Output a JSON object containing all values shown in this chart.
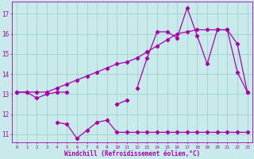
{
  "x": [
    0,
    1,
    2,
    3,
    4,
    5,
    6,
    7,
    8,
    9,
    10,
    11,
    12,
    13,
    14,
    15,
    16,
    17,
    18,
    19,
    20,
    21,
    22,
    23
  ],
  "line_smooth": [
    13.1,
    13.1,
    13.1,
    13.1,
    13.3,
    13.5,
    13.7,
    13.9,
    14.1,
    14.3,
    14.5,
    14.6,
    14.8,
    15.1,
    15.4,
    15.7,
    16.0,
    16.1,
    16.2,
    16.2,
    16.2,
    16.2,
    15.5,
    13.1
  ],
  "line_upper": [
    null,
    null,
    null,
    null,
    null,
    null,
    null,
    null,
    null,
    null,
    null,
    null,
    13.3,
    14.8,
    16.1,
    16.1,
    15.8,
    17.3,
    15.9,
    14.5,
    16.2,
    16.2,
    14.1,
    13.1
  ],
  "line_mid": [
    13.1,
    13.1,
    12.8,
    13.0,
    13.1,
    13.1,
    null,
    null,
    null,
    null,
    12.5,
    12.7,
    null,
    null,
    null,
    null,
    null,
    null,
    null,
    null,
    null,
    null,
    null,
    null
  ],
  "line_lower": [
    null,
    null,
    null,
    null,
    11.6,
    11.5,
    10.8,
    11.2,
    11.6,
    11.7,
    11.1,
    11.1,
    11.1,
    11.1,
    11.1,
    11.1,
    11.1,
    11.1,
    11.1,
    11.1,
    11.1,
    11.1,
    11.1,
    11.1
  ],
  "background": "#c8eaea",
  "line_color": "#aa00aa",
  "grid_color": "#99cccc",
  "xlabel": "Windchill (Refroidissement éolien,°C)",
  "yticks": [
    11,
    12,
    13,
    14,
    15,
    16,
    17
  ],
  "ylim": [
    10.6,
    17.6
  ],
  "xlim": [
    -0.5,
    23.5
  ]
}
